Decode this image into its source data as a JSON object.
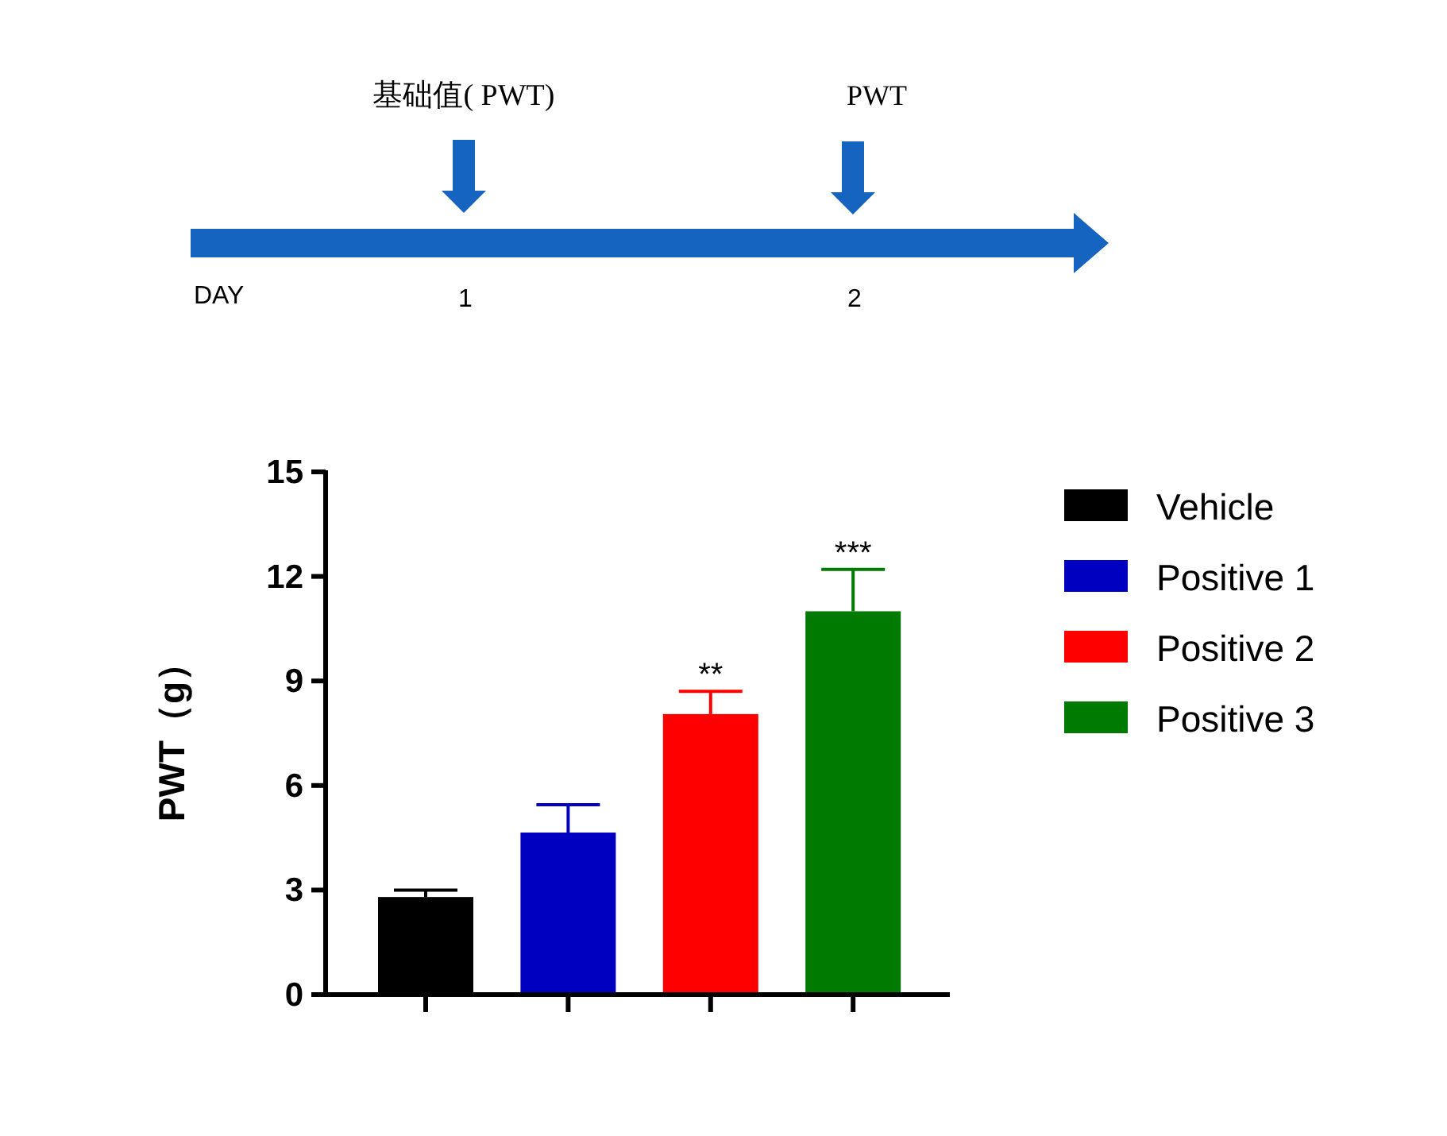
{
  "chart_data": [
    {
      "type": "other",
      "annotations": [
        "基础值( PWT)",
        "PWT",
        "DAY",
        "1",
        "2"
      ]
    },
    {
      "type": "bar",
      "stacked": true,
      "categories": [
        null,
        null,
        null,
        null
      ],
      "ylabel": "PWT（g）",
      "ylim": [
        0,
        15
      ],
      "yticks": [
        0,
        3,
        6,
        9,
        12,
        15
      ],
      "tick_labels": "y",
      "legend": "top right",
      "grid": false,
      "series": [
        {
          "name": "Vehicle",
          "color": "#000000",
          "values": [
            2.8,
            null,
            null,
            null
          ],
          "errors": [
            [
              2.8,
              3.0
            ],
            null,
            null,
            null
          ]
        },
        {
          "name": "Positive 1",
          "color": "#0000c0",
          "values": [
            null,
            4.65,
            null,
            null
          ],
          "errors": [
            null,
            [
              4.65,
              5.45
            ],
            null,
            null
          ]
        },
        {
          "name": "Positive 2",
          "color": "#ff0000",
          "values": [
            null,
            null,
            8.05,
            null
          ],
          "errors": [
            null,
            null,
            [
              8.05,
              8.7
            ],
            null
          ]
        },
        {
          "name": "Positive 3",
          "color": "#007a00",
          "values": [
            null,
            null,
            null,
            11.0
          ],
          "errors": [
            null,
            null,
            null,
            [
              11.0,
              12.2
            ]
          ]
        }
      ],
      "annotations": [
        {
          "text": "**",
          "y": 8.7
        },
        {
          "text": "***",
          "y": 12.2
        }
      ]
    }
  ]
}
